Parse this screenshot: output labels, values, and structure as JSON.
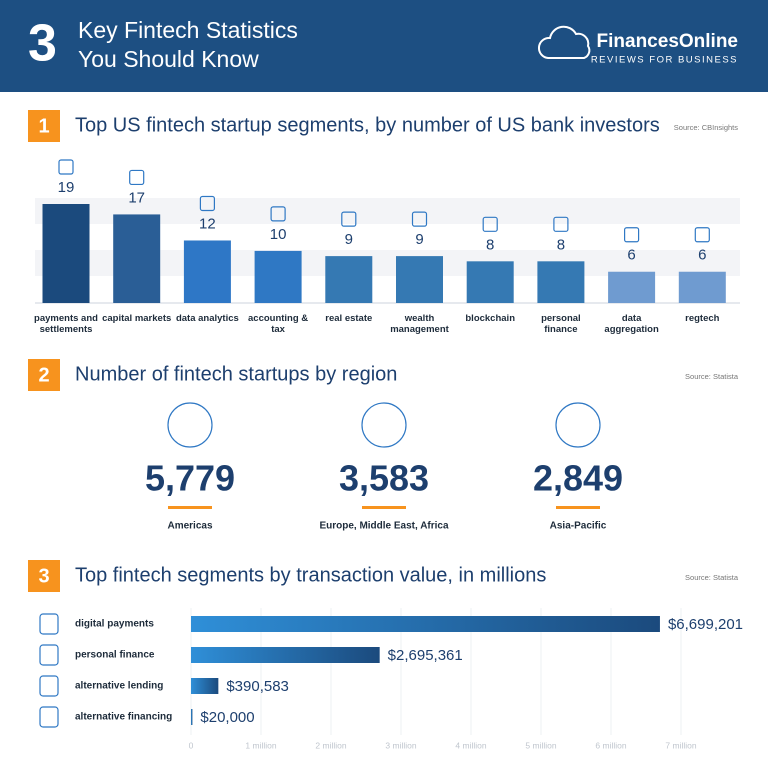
{
  "header": {
    "number": "3",
    "title_line1": "Key Fintech Statistics",
    "title_line2": "You Should Know",
    "brand": "FinancesOnline",
    "brand_tagline": "REVIEWS FOR BUSINESS"
  },
  "chart_data": [
    {
      "type": "bar",
      "number": "1",
      "title": "Top US fintech startup segments, by number of US bank investors",
      "source": "Source: CBInsights",
      "categories": [
        "payments and settlements",
        "capital markets",
        "data analytics",
        "accounting & tax",
        "real estate",
        "wealth management",
        "blockchain",
        "personal finance",
        "data aggregation",
        "regtech"
      ],
      "values": [
        19,
        17,
        12,
        10,
        9,
        9,
        8,
        8,
        6,
        6
      ],
      "colors": [
        "#1b4a7d",
        "#2a5e96",
        "#2e77c6",
        "#2f78c4",
        "#3579b3",
        "#3579b3",
        "#3579b3",
        "#3579b3",
        "#6f9bd0",
        "#6f9bd0"
      ]
    },
    {
      "type": "stat",
      "number": "2",
      "title": "Number of fintech startups by region",
      "source": "Source: Statista",
      "categories": [
        "Americas",
        "Europe, Middle East, Africa",
        "Asia-Pacific"
      ],
      "values": [
        5779,
        3583,
        2849
      ],
      "value_labels": [
        "5,779",
        "3,583",
        "2,849"
      ]
    },
    {
      "type": "hbar",
      "number": "3",
      "title": "Top fintech segments by transaction value, in millions",
      "source": "Source: Statista",
      "categories": [
        "digital payments",
        "personal finance",
        "alternative lending",
        "alternative financing"
      ],
      "values": [
        6699201,
        2695361,
        390583,
        20000
      ],
      "value_labels": [
        "$6,699,201",
        "$2,695,361",
        "$390,583",
        "$20,000"
      ],
      "color": "#1b4a7d",
      "xlim": [
        0,
        7000000
      ],
      "xticks": [
        0,
        {
          "value": 1000000,
          "label": "1 million"
        },
        {
          "value": 2000000,
          "label": "2 million"
        },
        {
          "value": 3000000,
          "label": "3 million"
        },
        {
          "value": 4000000,
          "label": "4 million"
        },
        {
          "value": 5000000,
          "label": "5 million"
        },
        {
          "value": 6000000,
          "label": "6 million"
        },
        {
          "value": 7000000,
          "label": "7 million"
        }
      ],
      "grid": true
    }
  ]
}
